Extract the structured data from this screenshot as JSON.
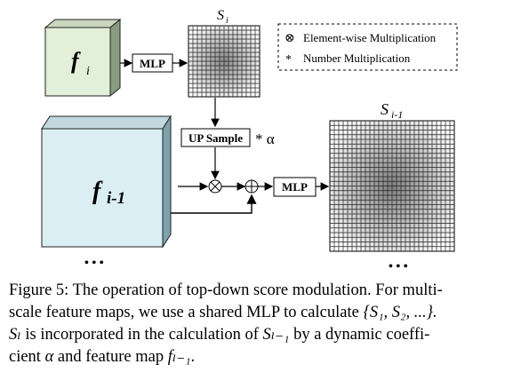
{
  "diagram": {
    "nodes": {
      "fi": {
        "label_main": "f",
        "label_sub": "i",
        "fill": "#e2efd9"
      },
      "fi1": {
        "label_main": "f",
        "label_sub": "i-1",
        "fill": "#daeef3"
      },
      "mlp_top": {
        "label": "MLP"
      },
      "mlp_bottom": {
        "label": "MLP"
      },
      "upsample": {
        "label": "UP Sample"
      },
      "alpha_mult": {
        "label": "* α"
      },
      "si": {
        "label_main": "S",
        "label_sub": "i",
        "grid": 16
      },
      "si1": {
        "label_main": "S",
        "label_sub": "i-1",
        "grid": 28
      },
      "ellipsis_left": "• • •",
      "ellipsis_right": "• • •"
    },
    "legend": {
      "items": [
        {
          "symbol": "⊗",
          "text": "Element-wise Multiplication"
        },
        {
          "symbol": "*",
          "text": "Number  Multiplication"
        }
      ]
    }
  },
  "caption": {
    "line1": "Figure 5: The operation of top-down score modulation. For multi-",
    "line2_a": "scale feature maps, we use a shared MLP to calculate ",
    "line2_math": "{S₁, S₂, ...}.",
    "line3_math1": "Sₗ",
    "line3_a": " is incorporated in the calculation of ",
    "line3_math2": "Sₗ₋₁",
    "line3_b": " by a dynamic coeffi-",
    "line4_a": "cient ",
    "line4_math1": "α",
    "line4_b": " and feature map ",
    "line4_math2": "fₗ₋₁",
    "line4_c": "."
  }
}
